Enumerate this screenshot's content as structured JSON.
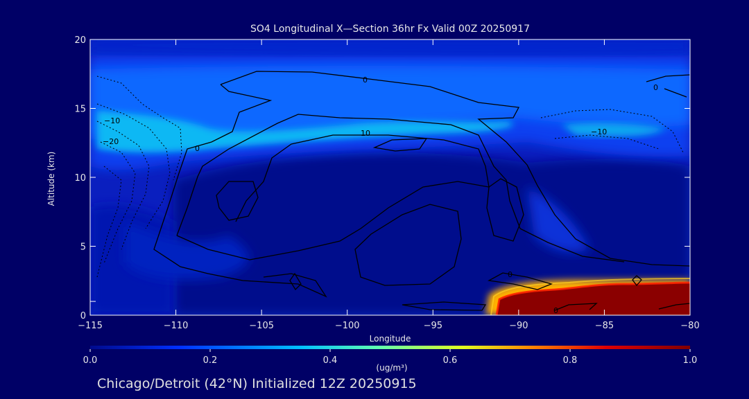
{
  "chart_data": {
    "type": "heatmap",
    "title": "SO4 Longitudinal X—Section 36hr  Fx Valid 00Z 20250917",
    "xlabel": "Longitude",
    "ylabel": "Altitude (km)",
    "xlim": [
      -115,
      -80
    ],
    "ylim": [
      0,
      20
    ],
    "x_ticks": [
      "−115",
      "−110",
      "−105",
      "−100",
      "−95",
      "−90",
      "−85",
      "−80"
    ],
    "x_tick_values": [
      -115,
      -110,
      -105,
      -100,
      -95,
      -90,
      -85,
      -80
    ],
    "y_ticks": [
      "0",
      "5",
      "10",
      "15",
      "20"
    ],
    "y_tick_values": [
      0,
      5,
      10,
      15,
      20
    ],
    "colorbar": {
      "min": 0.0,
      "max": 1.0,
      "tick_labels": [
        "0.0",
        "0.2",
        "0.4",
        "0.6",
        "0.8",
        "1.0"
      ],
      "tick_values": [
        0.0,
        0.2,
        0.4,
        0.6,
        0.8,
        1.0
      ],
      "units": "(ug/m³)",
      "colors": [
        "#000a8c",
        "#0040ff",
        "#00e0ff",
        "#a0ff60",
        "#ffd000",
        "#ff3000",
        "#8b0000"
      ]
    },
    "shading_regions": [
      {
        "description": "background low concentration",
        "value": 0.08
      },
      {
        "description": "upper-level band 13-19 km",
        "value": 0.25,
        "lon_range": [
          -115,
          -80
        ],
        "alt_range": [
          13,
          19
        ]
      },
      {
        "description": "upper-level maximum near 13-14 km west",
        "value": 0.38,
        "lon_range": [
          -115,
          -106
        ],
        "alt_range": [
          12.5,
          14.5
        ]
      },
      {
        "description": "lower-level high concentration east",
        "value": 1.0,
        "lon_range": [
          -91.8,
          -80
        ],
        "alt_range": [
          0,
          2.3
        ]
      }
    ],
    "contour_labels": [
      "0",
      "0",
      "0",
      "10",
      "−10",
      "−20",
      "−10",
      "0",
      "0"
    ]
  },
  "footer": "Chicago/Detroit (42°N) Initialized 12Z 20250915"
}
